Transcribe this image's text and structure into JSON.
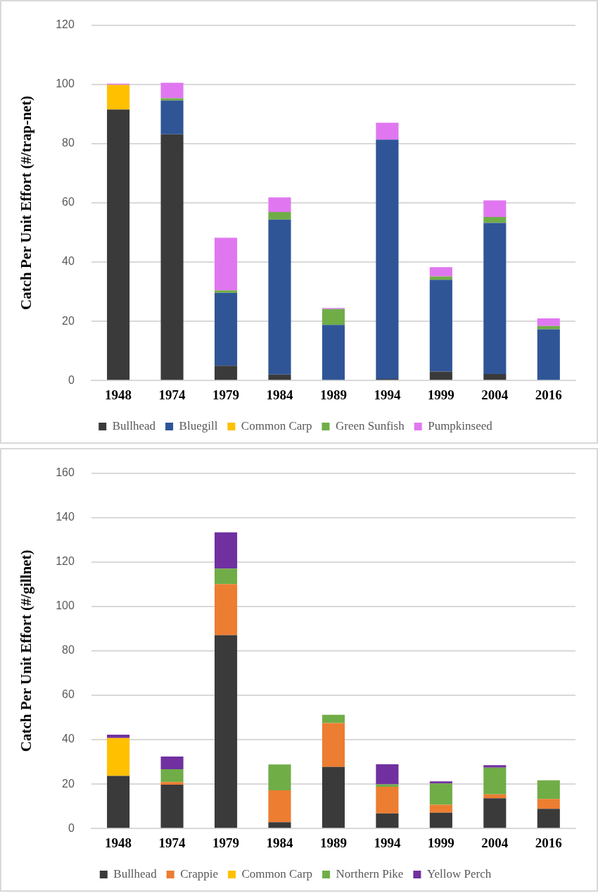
{
  "chart_data": [
    {
      "type": "bar",
      "stacked": true,
      "ylabel": "Catch Per Unit Effort (#/trap-net)",
      "categories": [
        "1948",
        "1974",
        "1979",
        "1984",
        "1989",
        "1994",
        "1999",
        "2004",
        "2016"
      ],
      "ylim": [
        0,
        120
      ],
      "yticks": [
        0,
        20,
        40,
        60,
        80,
        100,
        120
      ],
      "grid": "y",
      "legend": "bottom",
      "series": [
        {
          "name": "Bullhead",
          "color": "#3a3a3a",
          "values": [
            91.5,
            83.1,
            5.0,
            2.0,
            0,
            0.5,
            3.0,
            2.2,
            0
          ]
        },
        {
          "name": "Bluegill",
          "color": "#2f5597",
          "values": [
            0,
            11.4,
            24.6,
            52.3,
            18.8,
            80.8,
            31.0,
            51.0,
            17.3
          ]
        },
        {
          "name": "Common Carp",
          "color": "#ffc000",
          "values": [
            8.3,
            0,
            0,
            0,
            0,
            0,
            0,
            0,
            0
          ]
        },
        {
          "name": "Green Sunfish",
          "color": "#70ad47",
          "values": [
            0,
            0.8,
            0.8,
            2.6,
            5.3,
            0,
            1.1,
            2.0,
            1.1
          ]
        },
        {
          "name": "Pumpkinseed",
          "color": "#e077f0",
          "values": [
            0.4,
            5.2,
            17.8,
            4.9,
            0.4,
            5.7,
            3.2,
            5.6,
            2.6
          ]
        }
      ]
    },
    {
      "type": "bar",
      "stacked": true,
      "ylabel": "Catch Per Unit Effort (#/gillnet)",
      "categories": [
        "1948",
        "1974",
        "1979",
        "1984",
        "1989",
        "1994",
        "1999",
        "2004",
        "2016"
      ],
      "ylim": [
        0,
        160
      ],
      "yticks": [
        0,
        20,
        40,
        60,
        80,
        100,
        120,
        140,
        160
      ],
      "grid": "y",
      "legend": "bottom",
      "series": [
        {
          "name": "Bullhead",
          "color": "#3a3a3a",
          "values": [
            23.7,
            19.7,
            87.0,
            2.8,
            27.7,
            6.8,
            7.1,
            13.6,
            8.9
          ]
        },
        {
          "name": "Crappie",
          "color": "#ed7d31",
          "values": [
            0,
            1.2,
            23.0,
            14.4,
            19.8,
            12.0,
            3.6,
            1.8,
            4.4
          ]
        },
        {
          "name": "Common Carp",
          "color": "#ffc000",
          "values": [
            17.0,
            0,
            0,
            0,
            0,
            0,
            0,
            0,
            0
          ]
        },
        {
          "name": "Northern Pike",
          "color": "#70ad47",
          "values": [
            0,
            5.8,
            7.0,
            11.6,
            3.7,
            1.1,
            9.6,
            12.0,
            8.4
          ]
        },
        {
          "name": "Yellow Perch",
          "color": "#7030a0",
          "values": [
            1.5,
            5.7,
            16.3,
            0,
            0,
            9.0,
            0.9,
            1.1,
            0
          ]
        }
      ]
    }
  ]
}
